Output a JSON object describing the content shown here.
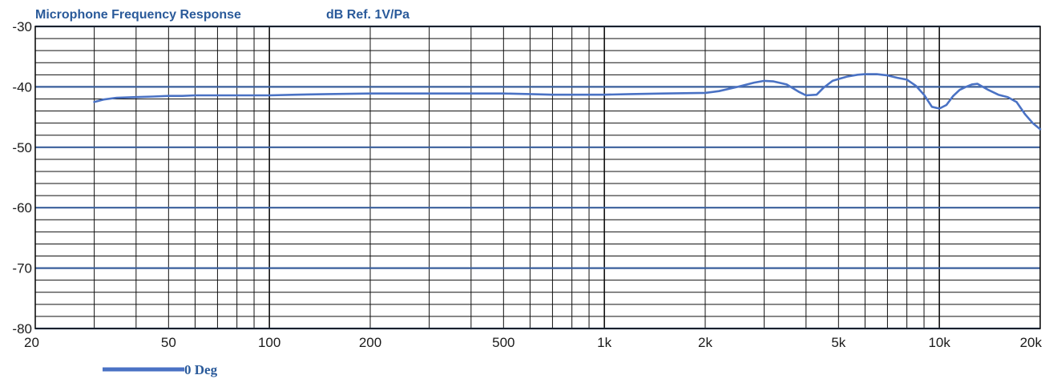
{
  "chart_data": {
    "type": "line",
    "title": "Microphone Frequency Response",
    "subtitle": "dB Ref. 1V/Pa",
    "xscale": "log",
    "xlim": [
      20,
      20000
    ],
    "ylim": [
      -80,
      -30
    ],
    "grid": true,
    "y_ticks": [
      -30,
      -40,
      -50,
      -60,
      -70,
      -80
    ],
    "y_tick_labels": [
      "-30",
      "-40",
      "-50",
      "-60",
      "-70",
      "-80"
    ],
    "x_ticks": [
      20,
      50,
      100,
      200,
      500,
      1000,
      2000,
      5000,
      10000,
      20000
    ],
    "x_tick_labels": [
      "20",
      "50",
      "100",
      "200",
      "500",
      "1k",
      "2k",
      "5k",
      "10k",
      "20k"
    ],
    "legend_position": "bottom-left",
    "colors": {
      "series": "#4a72c4",
      "grid": "#111111",
      "title": "#2a5a9a"
    },
    "series": [
      {
        "name": "0 Deg",
        "x": [
          30,
          32,
          35,
          40,
          45,
          50,
          55,
          60,
          70,
          80,
          100,
          120,
          150,
          200,
          300,
          400,
          500,
          600,
          700,
          800,
          1000,
          1200,
          1500,
          2000,
          2200,
          2500,
          2800,
          3000,
          3200,
          3500,
          3800,
          4000,
          4300,
          4500,
          4800,
          5000,
          5300,
          5700,
          6000,
          6500,
          7000,
          7500,
          8000,
          8500,
          9000,
          9500,
          10000,
          10500,
          11000,
          11500,
          12000,
          12500,
          13000,
          14000,
          15000,
          16000,
          17000,
          18000,
          19000,
          20000
        ],
        "y": [
          -42.5,
          -42.1,
          -41.8,
          -41.7,
          -41.6,
          -41.5,
          -41.5,
          -41.4,
          -41.4,
          -41.4,
          -41.4,
          -41.3,
          -41.2,
          -41.1,
          -41.1,
          -41.1,
          -41.1,
          -41.2,
          -41.3,
          -41.3,
          -41.3,
          -41.2,
          -41.1,
          -41.0,
          -40.7,
          -40.0,
          -39.3,
          -39.0,
          -39.1,
          -39.6,
          -40.8,
          -41.4,
          -41.3,
          -40.2,
          -39.0,
          -38.7,
          -38.3,
          -38.0,
          -37.9,
          -37.9,
          -38.1,
          -38.5,
          -38.8,
          -39.8,
          -41.3,
          -43.3,
          -43.6,
          -43.0,
          -41.5,
          -40.5,
          -40.0,
          -39.6,
          -39.5,
          -40.5,
          -41.3,
          -41.7,
          -42.5,
          -44.5,
          -46.0,
          -47.0
        ]
      }
    ]
  }
}
